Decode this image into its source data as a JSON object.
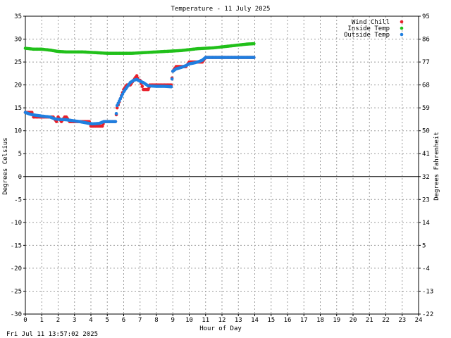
{
  "chart_data": {
    "type": "scatter",
    "title": "Temperature - 11 July 2025",
    "xlabel": "Hour of Day",
    "ylabel": "Degrees Celsius",
    "ylabel_right": "Degrees Fahrenheit",
    "xlim": [
      0,
      24
    ],
    "ylim": [
      -30,
      35
    ],
    "xticks": [
      "0",
      "1",
      "2",
      "3",
      "4",
      "5",
      "6",
      "7",
      "8",
      "9",
      "10",
      "11",
      "12",
      "13",
      "14",
      "15",
      "16",
      "17",
      "18",
      "19",
      "20",
      "21",
      "22",
      "23",
      "24"
    ],
    "yticks": [
      35,
      30,
      25,
      20,
      15,
      10,
      5,
      0,
      -5,
      -10,
      -15,
      -20,
      -25,
      -30
    ],
    "yticks_right": [
      95,
      86,
      77,
      68,
      59,
      50,
      41,
      32,
      23,
      14,
      5,
      -4,
      -13,
      -22
    ],
    "grid": true,
    "legend_position": "top-right",
    "series": [
      {
        "name": "Wind Chill",
        "color": "#e8202a",
        "x": [
          0.0,
          0.2,
          0.4,
          0.5,
          1.0,
          1.5,
          1.7,
          1.9,
          2.0,
          2.2,
          2.4,
          2.5,
          2.7,
          2.9,
          3.0,
          3.3,
          3.6,
          3.9,
          4.0,
          4.2,
          4.5,
          4.7,
          4.8,
          5.0,
          5.3,
          5.5,
          5.6,
          5.8,
          6.0,
          6.2,
          6.4,
          6.6,
          6.8,
          6.9,
          7.0,
          7.2,
          7.4,
          7.5,
          7.6,
          8.0,
          8.5,
          8.9,
          9.0,
          9.2,
          9.4,
          9.6,
          9.8,
          10.0,
          10.3,
          10.6,
          10.8,
          11.0,
          11.5,
          12.0,
          12.5,
          13.0,
          13.5,
          13.95
        ],
        "values": [
          14,
          14,
          14,
          13,
          13,
          13,
          13,
          12,
          13,
          12,
          13,
          13,
          12,
          12,
          12,
          12,
          12,
          12,
          11,
          11,
          11,
          11,
          12,
          12,
          12,
          12,
          15,
          17,
          19,
          20,
          20,
          21,
          22,
          21,
          21,
          19,
          19,
          19,
          20,
          20,
          20,
          20,
          23,
          24,
          24,
          24,
          24,
          25,
          25,
          25,
          25,
          26,
          26,
          26,
          26,
          26,
          26,
          26
        ]
      },
      {
        "name": "Inside Temp",
        "color": "#21c01a",
        "x": [
          0.0,
          0.5,
          1.0,
          1.5,
          2.0,
          2.5,
          3.0,
          3.5,
          4.0,
          4.5,
          5.0,
          5.5,
          6.0,
          6.5,
          7.0,
          7.5,
          8.0,
          8.5,
          9.0,
          9.5,
          10.0,
          10.5,
          11.0,
          11.5,
          12.0,
          12.5,
          13.0,
          13.5,
          13.95
        ],
        "values": [
          28,
          27.8,
          27.8,
          27.6,
          27.3,
          27.2,
          27.2,
          27.2,
          27.1,
          27.0,
          26.9,
          26.9,
          26.9,
          26.9,
          27.0,
          27.1,
          27.2,
          27.3,
          27.4,
          27.5,
          27.7,
          27.9,
          28.0,
          28.1,
          28.3,
          28.5,
          28.7,
          28.9,
          29.0
        ]
      },
      {
        "name": "Outside Temp",
        "color": "#1f7fe0",
        "x": [
          0.0,
          0.3,
          0.6,
          1.0,
          1.5,
          1.8,
          2.0,
          2.5,
          2.9,
          3.3,
          3.6,
          3.9,
          4.1,
          4.5,
          4.8,
          5.0,
          5.3,
          5.5,
          5.6,
          5.8,
          6.0,
          6.2,
          6.4,
          6.6,
          6.8,
          7.0,
          7.2,
          7.5,
          8.0,
          8.5,
          8.9,
          9.0,
          9.2,
          9.5,
          9.8,
          10.0,
          10.3,
          10.6,
          10.8,
          11.0,
          11.5,
          12.0,
          12.5,
          13.0,
          13.5,
          13.95
        ],
        "values": [
          14,
          13.6,
          13.4,
          13.2,
          13,
          12.6,
          12.5,
          12.4,
          12.2,
          12,
          11.8,
          11.6,
          11.5,
          11.6,
          12,
          12,
          12,
          12,
          15.5,
          17,
          18.5,
          19.5,
          20.5,
          21,
          21.2,
          20.8,
          20.5,
          19.8,
          19.7,
          19.7,
          19.6,
          23,
          23.5,
          23.8,
          24.2,
          24.6,
          24.8,
          25.1,
          25.4,
          26,
          26,
          26,
          26,
          26,
          26,
          26
        ]
      }
    ]
  },
  "timestamp": "Fri Jul 11 13:57:02 2025"
}
